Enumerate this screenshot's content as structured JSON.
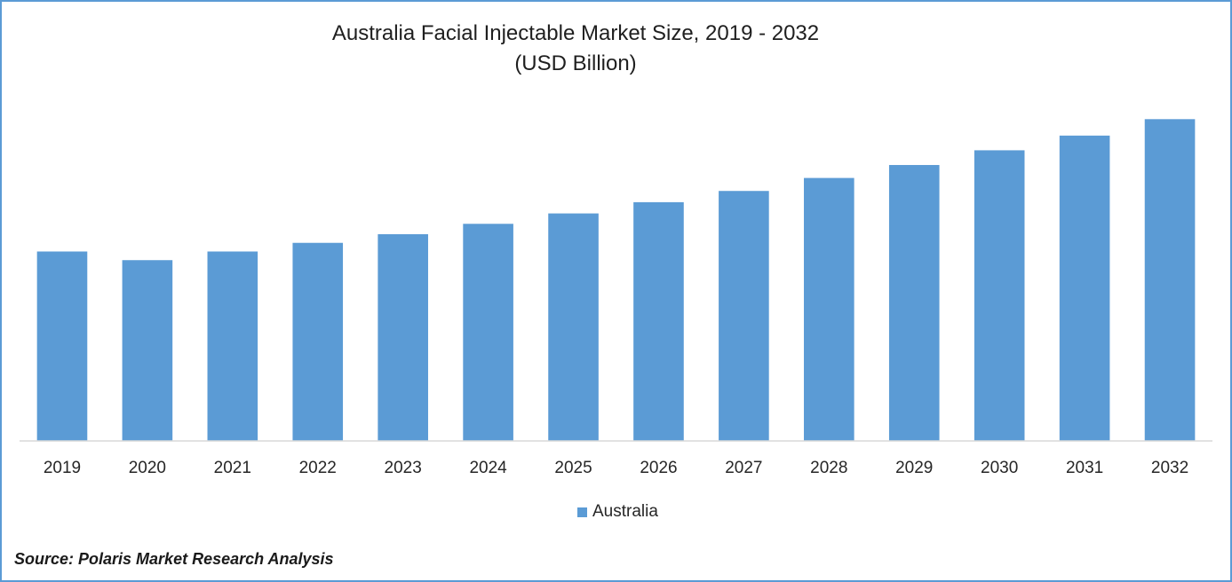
{
  "chart_data": {
    "type": "bar",
    "title": "Australia Facial Injectable Market Size, 2019 - 2032",
    "subtitle": "(USD Billion)",
    "categories": [
      "2019",
      "2020",
      "2021",
      "2022",
      "2023",
      "2024",
      "2025",
      "2026",
      "2027",
      "2028",
      "2029",
      "2030",
      "2031",
      "2032"
    ],
    "series": [
      {
        "name": "Australia",
        "color": "#5b9bd5",
        "values": [
          0.219,
          0.209,
          0.219,
          0.229,
          0.239,
          0.251,
          0.263,
          0.276,
          0.289,
          0.304,
          0.319,
          0.336,
          0.353,
          0.372
        ]
      }
    ],
    "ylim": [
      0,
      0.4
    ],
    "grid": false,
    "legend_position": "bottom"
  },
  "source": "Source: Polaris Market Research Analysis"
}
